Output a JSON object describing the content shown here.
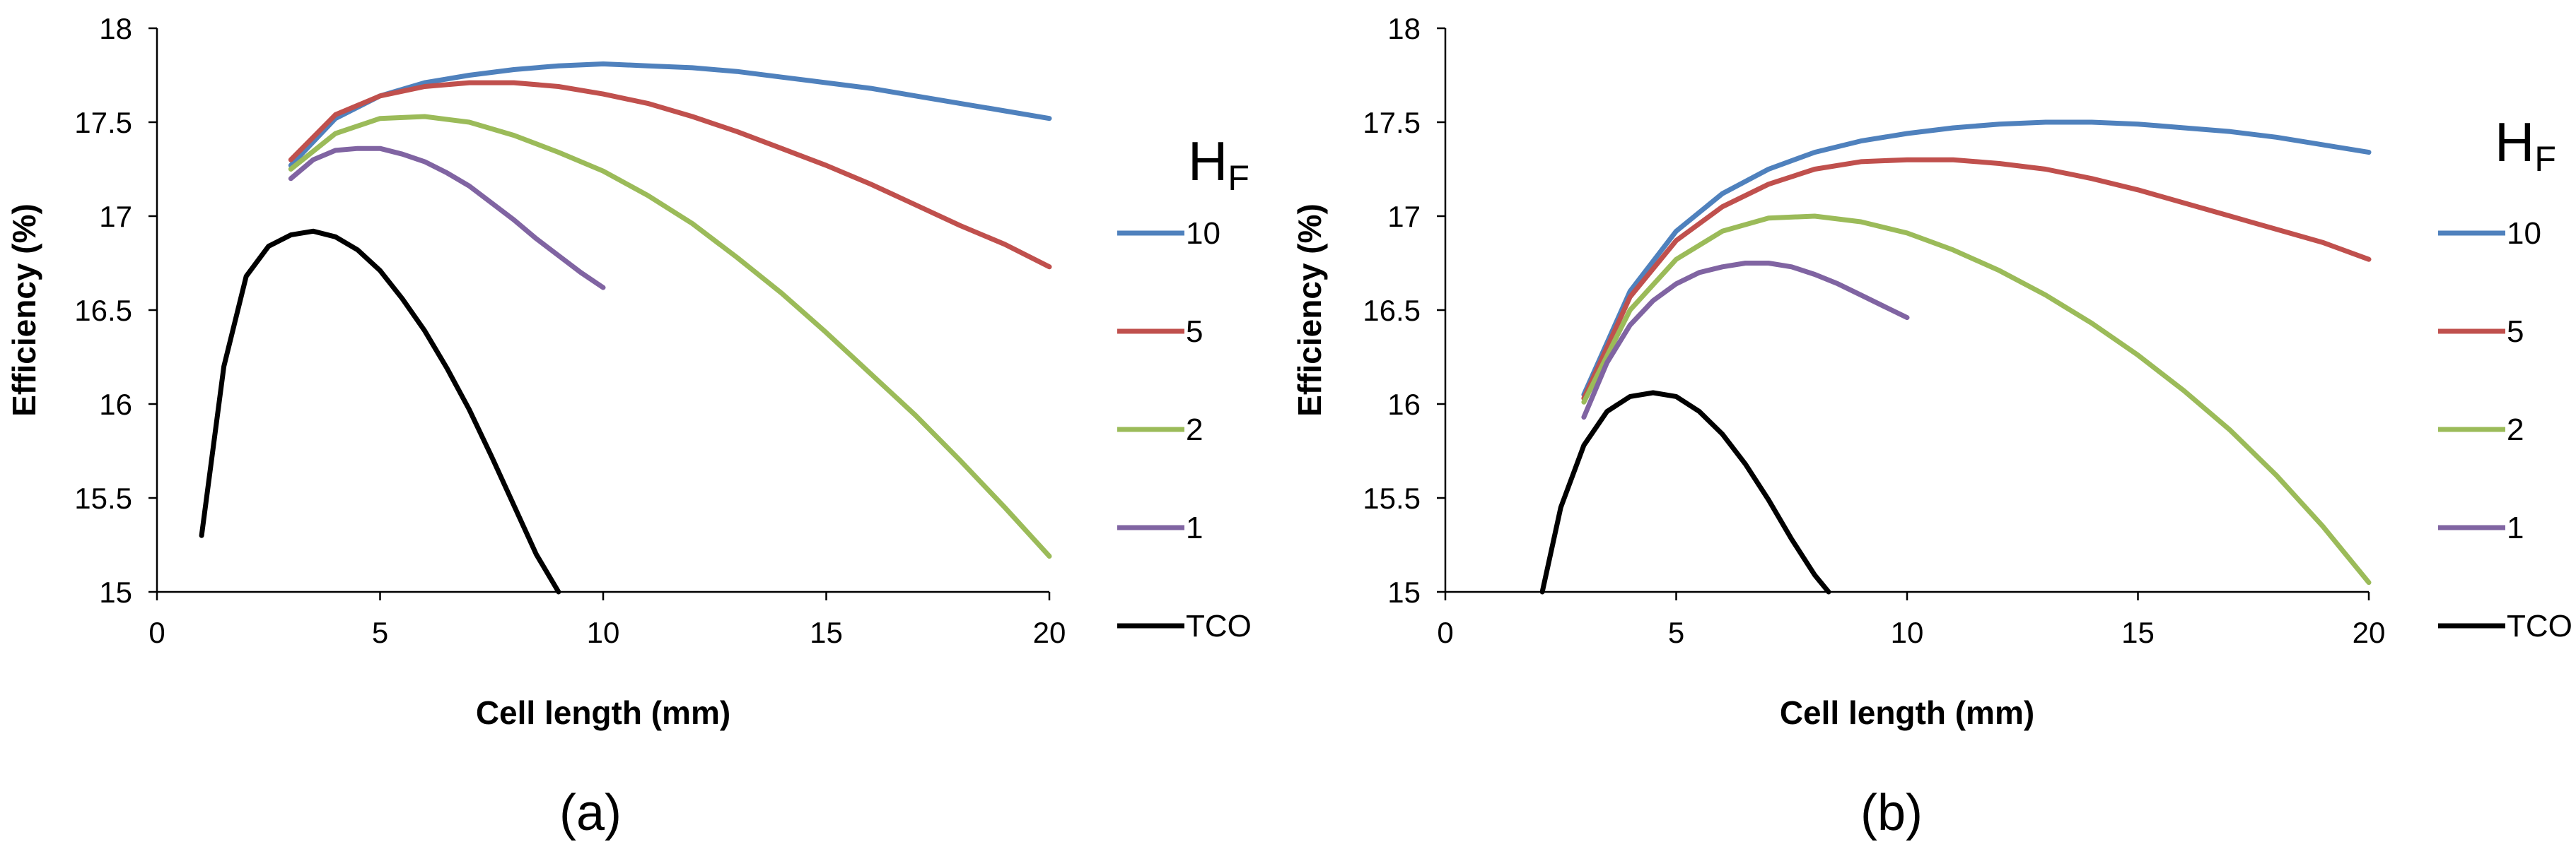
{
  "chart_data": [
    {
      "type": "line",
      "caption": "(a)",
      "xlabel": "Cell length (mm)",
      "ylabel": "Efficiency (%)",
      "xlim": [
        0,
        20
      ],
      "ylim": [
        15,
        18
      ],
      "xticks": [
        "0",
        "5",
        "10",
        "15",
        "20"
      ],
      "yticks": [
        "15",
        "15.5",
        "16",
        "16.5",
        "17",
        "17.5",
        "18"
      ],
      "legend_title": "H",
      "legend_title_sub": "F",
      "series": [
        {
          "name": "10",
          "color": "#4F81BD",
          "x": [
            3,
            4,
            5,
            6,
            7,
            8,
            9,
            10,
            11,
            12,
            13,
            14,
            15,
            16,
            17,
            18,
            19,
            20
          ],
          "y": [
            17.27,
            17.52,
            17.64,
            17.71,
            17.75,
            17.78,
            17.8,
            17.81,
            17.8,
            17.79,
            17.77,
            17.74,
            17.71,
            17.68,
            17.64,
            17.6,
            17.56,
            17.52
          ]
        },
        {
          "name": "5",
          "color": "#C0504D",
          "x": [
            3,
            4,
            5,
            6,
            7,
            8,
            9,
            10,
            11,
            12,
            13,
            14,
            15,
            16,
            17,
            18,
            19,
            20
          ],
          "y": [
            17.3,
            17.54,
            17.64,
            17.69,
            17.71,
            17.71,
            17.69,
            17.65,
            17.6,
            17.53,
            17.45,
            17.36,
            17.27,
            17.17,
            17.06,
            16.95,
            16.85,
            16.73
          ]
        },
        {
          "name": "2",
          "color": "#9BBB59",
          "x": [
            3,
            4,
            5,
            6,
            7,
            8,
            9,
            10,
            11,
            12,
            13,
            14,
            15,
            16,
            17,
            18,
            19,
            20
          ],
          "y": [
            17.25,
            17.44,
            17.52,
            17.53,
            17.5,
            17.43,
            17.34,
            17.24,
            17.11,
            16.96,
            16.78,
            16.59,
            16.38,
            16.16,
            15.94,
            15.7,
            15.45,
            15.19
          ]
        },
        {
          "name": "1",
          "color": "#8064A2",
          "x": [
            3,
            3.5,
            4,
            4.5,
            5,
            5.5,
            6,
            6.5,
            7,
            7.5,
            8,
            8.5,
            9,
            9.5,
            10
          ],
          "y": [
            17.2,
            17.3,
            17.35,
            17.36,
            17.36,
            17.33,
            17.29,
            17.23,
            17.16,
            17.07,
            16.98,
            16.88,
            16.79,
            16.7,
            16.62
          ]
        },
        {
          "name": "TCO",
          "color": "#000000",
          "x": [
            1,
            1.5,
            2,
            2.5,
            3,
            3.5,
            4,
            4.5,
            5,
            5.5,
            6,
            6.5,
            7,
            7.5,
            8,
            8.5,
            9
          ],
          "y": [
            15.3,
            16.2,
            16.68,
            16.84,
            16.9,
            16.92,
            16.89,
            16.82,
            16.71,
            16.56,
            16.39,
            16.19,
            15.97,
            15.72,
            15.46,
            15.2,
            14.97
          ]
        }
      ]
    },
    {
      "type": "line",
      "caption": "(b)",
      "xlabel": "Cell length (mm)",
      "ylabel": "Efficiency (%)",
      "xlim": [
        0,
        20
      ],
      "ylim": [
        15,
        18
      ],
      "xticks": [
        "0",
        "5",
        "10",
        "15",
        "20"
      ],
      "yticks": [
        "15",
        "15.5",
        "16",
        "16.5",
        "17",
        "17.5",
        "18"
      ],
      "legend_title": "H",
      "legend_title_sub": "F",
      "series": [
        {
          "name": "10",
          "color": "#4F81BD",
          "x": [
            3,
            4,
            5,
            6,
            7,
            8,
            9,
            10,
            11,
            12,
            13,
            14,
            15,
            16,
            17,
            18,
            19,
            20
          ],
          "y": [
            16.05,
            16.6,
            16.92,
            17.12,
            17.25,
            17.34,
            17.4,
            17.44,
            17.47,
            17.49,
            17.5,
            17.5,
            17.49,
            17.47,
            17.45,
            17.42,
            17.38,
            17.34
          ]
        },
        {
          "name": "5",
          "color": "#C0504D",
          "x": [
            3,
            4,
            5,
            6,
            7,
            8,
            9,
            10,
            11,
            12,
            13,
            14,
            15,
            16,
            17,
            18,
            19,
            20
          ],
          "y": [
            16.03,
            16.57,
            16.87,
            17.05,
            17.17,
            17.25,
            17.29,
            17.3,
            17.3,
            17.28,
            17.25,
            17.2,
            17.14,
            17.07,
            17.0,
            16.93,
            16.86,
            16.77
          ]
        },
        {
          "name": "2",
          "color": "#9BBB59",
          "x": [
            3,
            4,
            5,
            6,
            7,
            8,
            9,
            10,
            11,
            12,
            13,
            14,
            15,
            16,
            17,
            18,
            19,
            20
          ],
          "y": [
            16.01,
            16.5,
            16.77,
            16.92,
            16.99,
            17.0,
            16.97,
            16.91,
            16.82,
            16.71,
            16.58,
            16.43,
            16.26,
            16.07,
            15.86,
            15.62,
            15.35,
            15.05
          ]
        },
        {
          "name": "1",
          "color": "#8064A2",
          "x": [
            3,
            3.5,
            4,
            4.5,
            5,
            5.5,
            6,
            6.5,
            7,
            7.5,
            8,
            8.5,
            9,
            9.5,
            10
          ],
          "y": [
            15.93,
            16.22,
            16.42,
            16.55,
            16.64,
            16.7,
            16.73,
            16.75,
            16.75,
            16.73,
            16.69,
            16.64,
            16.58,
            16.52,
            16.46
          ]
        },
        {
          "name": "TCO",
          "color": "#000000",
          "x": [
            2.1,
            2.5,
            3,
            3.5,
            4,
            4.5,
            5,
            5.5,
            6,
            6.5,
            7,
            7.5,
            8,
            8.3
          ],
          "y": [
            14.97,
            15.45,
            15.78,
            15.96,
            16.04,
            16.06,
            16.04,
            15.96,
            15.84,
            15.68,
            15.49,
            15.28,
            15.09,
            14.97
          ]
        }
      ]
    }
  ]
}
